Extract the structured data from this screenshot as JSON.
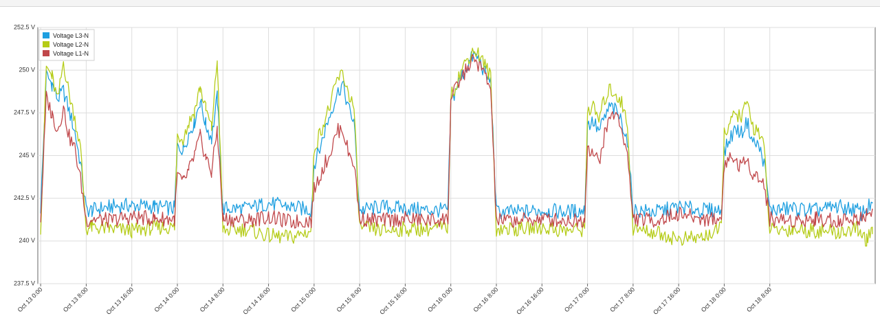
{
  "chart_data": {
    "type": "line",
    "title": "",
    "xlabel": "",
    "ylabel": "",
    "ylim": [
      237.5,
      252.5
    ],
    "y_ticks": [
      237.5,
      240,
      242.5,
      245,
      247.5,
      250,
      252.5
    ],
    "y_tick_labels": [
      "237.5 V",
      "240 V",
      "242.5 V",
      "245 V",
      "247.5 V",
      "250 V",
      "252.5 V"
    ],
    "x_unit": "hours since Oct 13 0:00",
    "xlim": [
      -0.5,
      146.5
    ],
    "x_ticks": [
      0,
      8,
      16,
      24,
      32,
      40,
      48,
      56,
      64,
      72,
      80,
      88,
      96,
      104,
      112,
      120,
      128
    ],
    "x_tick_labels": [
      "Oct 13 0:00",
      "Oct 13 8:00",
      "Oct 13 16:00",
      "Oct 14 0:00",
      "Oct 14 8:00",
      "Oct 14 16:00",
      "Oct 15 0:00",
      "Oct 15 8:00",
      "Oct 15 16:00",
      "Oct 16 0:00",
      "Oct 16 8:00",
      "Oct 16 16:00",
      "Oct 17 0:00",
      "Oct 17 8:00",
      "Oct 17 16:00",
      "Oct 18 0:00",
      "Oct 18 8:00"
    ],
    "grid": true,
    "legend_position": "top-left",
    "x": [
      0,
      1,
      2,
      3,
      4,
      5,
      6,
      7,
      8,
      9,
      12,
      16,
      20,
      23.5,
      24,
      25,
      26,
      27,
      28,
      29,
      30,
      31,
      32,
      36,
      40,
      44,
      47.5,
      48,
      49,
      50,
      51,
      52,
      53,
      54,
      55,
      56,
      60,
      64,
      68,
      71.5,
      72,
      73,
      74,
      75,
      76,
      77,
      78,
      79,
      80,
      84,
      88,
      92,
      95.5,
      96,
      97,
      98,
      99,
      100,
      101,
      102,
      103,
      104,
      108,
      112,
      116,
      119.5,
      120,
      121,
      122,
      123,
      124,
      125,
      126,
      127,
      128,
      132,
      136,
      140,
      143.5,
      144,
      145,
      146
    ],
    "series": [
      {
        "name": "Voltage L3-N",
        "color": "#1e9fe0",
        "values": [
          241.9,
          249.7,
          249.2,
          248.3,
          248.8,
          247.6,
          246.4,
          244.5,
          241.8,
          241.8,
          242.0,
          242.1,
          242.0,
          241.9,
          245.5,
          245.4,
          246.3,
          247.0,
          248.2,
          246.8,
          246.0,
          248.4,
          241.9,
          241.9,
          242.2,
          242.0,
          241.8,
          244.5,
          245.4,
          246.6,
          247.6,
          248.6,
          249.2,
          247.8,
          247.0,
          241.8,
          242.0,
          241.9,
          241.8,
          241.8,
          248.0,
          249.0,
          249.7,
          250.3,
          250.9,
          250.6,
          249.8,
          249.3,
          241.7,
          241.7,
          241.8,
          241.7,
          241.8,
          246.8,
          247.0,
          246.4,
          247.2,
          247.9,
          247.6,
          247.0,
          245.9,
          241.8,
          241.7,
          242.0,
          241.8,
          241.8,
          245.2,
          246.0,
          246.6,
          246.3,
          247.0,
          245.8,
          245.6,
          244.6,
          241.8,
          241.9,
          241.8,
          242.0,
          241.8,
          241.6,
          241.9,
          242.2
        ]
      },
      {
        "name": "Voltage L2-N",
        "color": "#b5cc18",
        "values": [
          240.8,
          250.2,
          249.6,
          248.2,
          250.5,
          248.6,
          247.2,
          245.4,
          240.7,
          240.8,
          240.7,
          240.6,
          240.8,
          240.8,
          246.2,
          246.0,
          246.9,
          247.6,
          249.0,
          247.7,
          246.6,
          250.6,
          240.6,
          240.7,
          240.3,
          240.2,
          240.6,
          245.4,
          246.3,
          247.2,
          248.1,
          249.4,
          249.8,
          248.7,
          247.8,
          240.8,
          240.6,
          240.7,
          240.7,
          240.8,
          248.4,
          249.3,
          250.1,
          250.7,
          251.2,
          250.9,
          250.3,
          249.6,
          240.7,
          240.7,
          240.8,
          240.6,
          240.7,
          247.6,
          247.8,
          247.1,
          248.3,
          248.9,
          248.6,
          248.1,
          246.8,
          240.7,
          240.5,
          240.1,
          240.2,
          240.7,
          246.4,
          246.8,
          247.5,
          247.2,
          248.1,
          246.7,
          246.5,
          245.4,
          240.6,
          240.7,
          240.6,
          240.5,
          240.7,
          240.3,
          240.1,
          240.4
        ]
      },
      {
        "name": "Voltage L1-N",
        "color": "#c0474a",
        "values": [
          241.3,
          248.4,
          247.4,
          246.5,
          247.8,
          246.1,
          245.4,
          243.6,
          241.2,
          241.3,
          241.2,
          241.4,
          241.3,
          241.3,
          243.9,
          243.4,
          244.1,
          245.0,
          246.1,
          244.9,
          244.0,
          246.6,
          241.3,
          241.2,
          241.4,
          241.1,
          241.2,
          243.0,
          243.8,
          244.6,
          245.3,
          246.4,
          246.6,
          245.2,
          244.6,
          241.3,
          241.2,
          241.3,
          241.2,
          241.3,
          248.2,
          249.0,
          249.6,
          250.2,
          250.6,
          250.3,
          249.7,
          248.9,
          241.2,
          241.2,
          241.3,
          241.2,
          241.2,
          245.6,
          245.1,
          244.6,
          246.2,
          247.3,
          247.5,
          246.6,
          245.0,
          241.3,
          241.2,
          241.6,
          241.3,
          241.3,
          244.5,
          244.9,
          244.7,
          244.3,
          244.8,
          244.0,
          243.7,
          243.3,
          241.3,
          241.2,
          241.3,
          241.2,
          241.3,
          241.4,
          241.6,
          241.8
        ]
      }
    ]
  }
}
